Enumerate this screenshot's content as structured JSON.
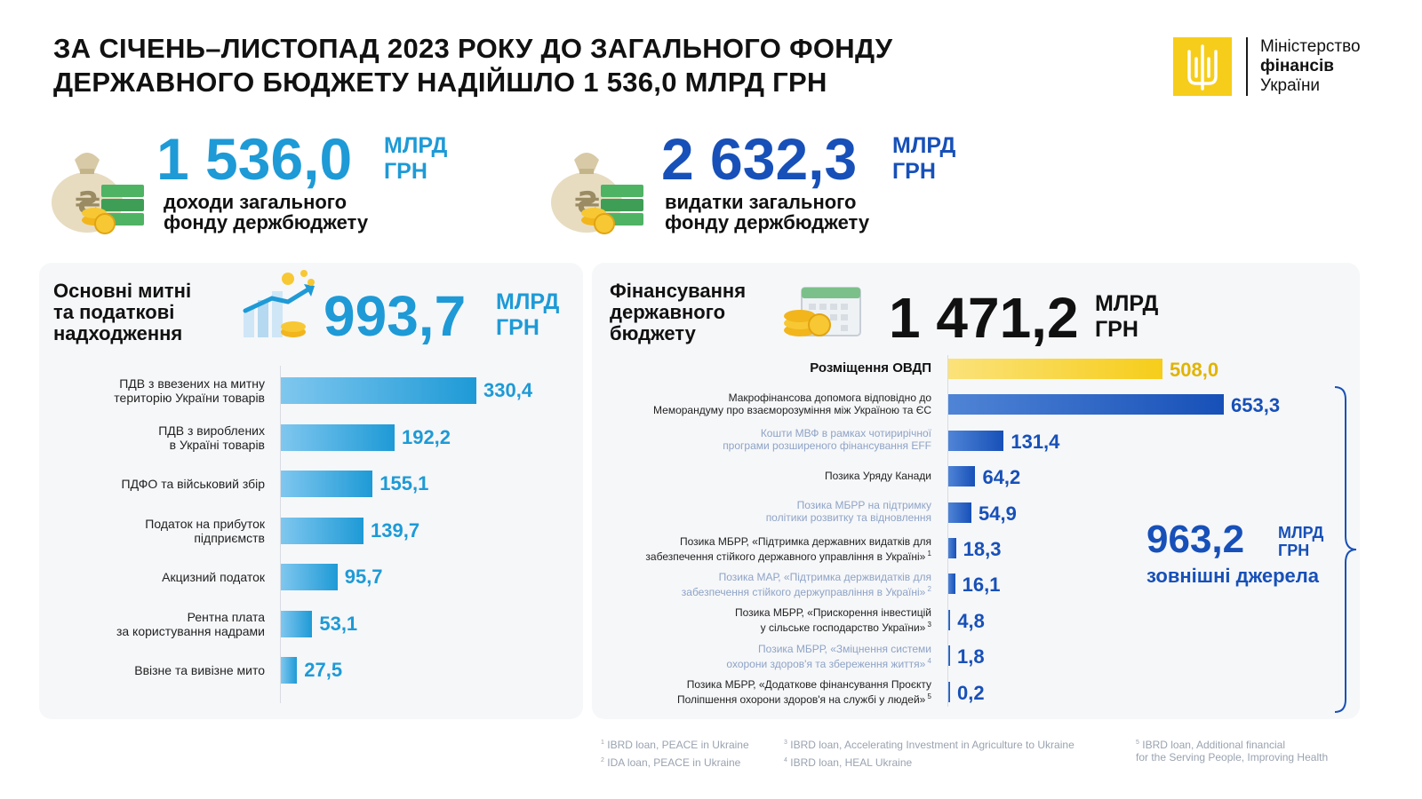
{
  "header": {
    "title_line1": "ЗА СІЧЕНЬ–ЛИСТОПАД 2023 РОКУ ДО ЗАГАЛЬНОГО ФОНДУ",
    "title_line2": "ДЕРЖАВНОГО БЮДЖЕТУ НАДІЙШЛО 1 536,0 МЛРД ГРН"
  },
  "logo": {
    "line1": "Міністерство",
    "line2": "фінансів",
    "line3": "України"
  },
  "kpis": {
    "revenue": {
      "value": "1 536,0",
      "unit_line1": "МЛРД",
      "unit_line2": "ГРН",
      "label_line1": "доходи загального",
      "label_line2": "фонду держбюджету"
    },
    "spending": {
      "value": "2 632,3",
      "unit_line1": "МЛРД",
      "unit_line2": "ГРН",
      "label_line1": "видатки загального",
      "label_line2": "фонду держбюджету"
    }
  },
  "left_panel": {
    "title_line1": "Основні митні",
    "title_line2": "та податкові",
    "title_line3": "надходження",
    "total": "993,7",
    "unit_line1": "МЛРД",
    "unit_line2": "ГРН"
  },
  "right_panel": {
    "title_line1": "Фінансування",
    "title_line2": "державного",
    "title_line3": "бюджету",
    "total": "1 471,2",
    "unit_line1": "МЛРД",
    "unit_line2": "ГРН",
    "external": {
      "value": "963,2",
      "unit_line1": "МЛРД",
      "unit_line2": "ГРН",
      "label": "зовнішні джерела"
    }
  },
  "colors": {
    "light_blue": "#1e9ad6",
    "dark_blue": "#1750b8",
    "yellow": "#f6cd1a",
    "gold_text": "#e1b400"
  },
  "chart_data": [
    {
      "type": "bar",
      "orientation": "horizontal",
      "categories": [
        [
          "ПДВ з ввезених на митну",
          "територію України товарів"
        ],
        [
          "ПДВ з вироблених",
          "в Україні товарів"
        ],
        [
          "ПДФО та військовий збір"
        ],
        [
          "Податок на прибуток",
          "підприємств"
        ],
        [
          "Акцизний податок"
        ],
        [
          "Рентна плата",
          "за користування надрами"
        ],
        [
          "Ввізне та вивізне мито"
        ]
      ],
      "values": [
        330.4,
        192.2,
        155.1,
        139.7,
        95.7,
        53.1,
        27.5
      ],
      "value_labels": [
        "330,4",
        "192,2",
        "155,1",
        "139,7",
        "95,7",
        "53,1",
        "27,5"
      ]
    },
    {
      "type": "bar",
      "orientation": "horizontal",
      "categories": [
        [
          "Розміщення ОВДП"
        ],
        [
          "Макрофінансова допомога відповідно до",
          "Меморандуму про взаєморозуміння між Україною та ЄС"
        ],
        [
          "Кошти МВФ в рамках чотирирічної",
          "програми розширеного фінансування EFF"
        ],
        [
          "Позика Уряду Канади"
        ],
        [
          "Позика МБРР на підтримку",
          "політики розвитку та відновлення"
        ],
        [
          "Позика МБРР, «Підтримка державних видатків для",
          "забезпечення стійкого державного управління в Україні»"
        ],
        [
          "Позика МАР, «Підтримка держвидатків для",
          "забезпечення стійкого держуправління в Україні»"
        ],
        [
          "Позика МБРР, «Прискорення інвестицій",
          "у сільське господарство України»"
        ],
        [
          "Позика МБРР, «Зміцнення системи",
          "охорони здоров'я та збереження життя»"
        ],
        [
          "Позика МБРР, «Додаткове фінансування Проєкту",
          "Поліпшення охорони здоров'я на службі у людей»"
        ]
      ],
      "footnote_marks": [
        "",
        "",
        "",
        "",
        "",
        "1",
        "2",
        "3",
        "4",
        "5"
      ],
      "values": [
        508.0,
        653.3,
        131.4,
        64.2,
        54.9,
        18.3,
        16.1,
        4.8,
        1.8,
        0.2
      ],
      "value_labels": [
        "508,0",
        "653,3",
        "131,4",
        "64,2",
        "54,9",
        "18,3",
        "16,1",
        "4,8",
        "1,8",
        "0,2"
      ],
      "highlight_first": true
    }
  ],
  "footnotes": [
    {
      "num": "1",
      "text": "IBRD loan, PEACE in Ukraine"
    },
    {
      "num": "2",
      "text": "IDA loan, PEACE in Ukraine"
    },
    {
      "num": "3",
      "text": "IBRD loan, Accelerating Investment in Agriculture to Ukraine"
    },
    {
      "num": "4",
      "text": "IBRD loan, HEAL Ukraine"
    },
    {
      "num": "5",
      "text_line1": "IBRD loan, Additional financial",
      "text_line2": "for the Serving People, Improving Health"
    }
  ]
}
